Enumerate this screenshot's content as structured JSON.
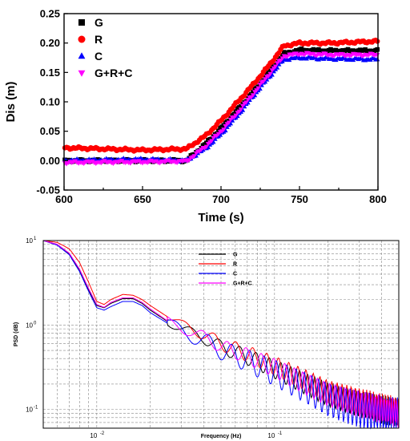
{
  "chart_data": [
    {
      "type": "scatter",
      "xlabel": "Time (s)",
      "ylabel": "Dis (m)",
      "xlim": [
        600,
        800
      ],
      "ylim": [
        -0.05,
        0.25
      ],
      "x_ticks": [
        "600",
        "650",
        "700",
        "750",
        "800"
      ],
      "y_ticks": [
        "-0.05",
        "0.00",
        "0.05",
        "0.10",
        "0.15",
        "0.20",
        "0.25"
      ],
      "legend_position": "top-left",
      "series": [
        {
          "name": "G",
          "color": "#000000",
          "marker": "square",
          "x": [
            600,
            650,
            678,
            690,
            700,
            710,
            720,
            730,
            740,
            750,
            770,
            800
          ],
          "y": [
            0.0,
            0.0,
            0.0,
            0.028,
            0.055,
            0.085,
            0.115,
            0.148,
            0.182,
            0.188,
            0.187,
            0.187
          ]
        },
        {
          "name": "R",
          "color": "#ff0000",
          "marker": "circle",
          "x": [
            600,
            650,
            678,
            690,
            700,
            710,
            720,
            730,
            740,
            750,
            770,
            800
          ],
          "y": [
            0.022,
            0.018,
            0.02,
            0.042,
            0.068,
            0.098,
            0.128,
            0.16,
            0.195,
            0.2,
            0.2,
            0.203
          ]
        },
        {
          "name": "C",
          "color": "#0000ff",
          "marker": "triangle-up",
          "x": [
            600,
            650,
            678,
            690,
            700,
            710,
            720,
            730,
            740,
            750,
            770,
            800
          ],
          "y": [
            0.0,
            0.002,
            0.0,
            0.02,
            0.045,
            0.075,
            0.108,
            0.14,
            0.172,
            0.175,
            0.173,
            0.172
          ]
        },
        {
          "name": "G+R+C",
          "color": "#ff00ff",
          "marker": "triangle-down",
          "x": [
            600,
            650,
            678,
            690,
            700,
            710,
            720,
            730,
            740,
            750,
            770,
            800
          ],
          "y": [
            -0.003,
            -0.002,
            -0.001,
            0.024,
            0.05,
            0.08,
            0.112,
            0.145,
            0.178,
            0.182,
            0.18,
            0.18
          ]
        }
      ]
    },
    {
      "type": "line",
      "xscale": "log",
      "yscale": "log",
      "xlabel": "Frequency (Hz)",
      "ylabel": "PSD (dB)",
      "xlim": [
        0.005,
        0.5
      ],
      "ylim": [
        0.06,
        10
      ],
      "x_ticks": [
        "10-2",
        "10-1"
      ],
      "y_ticks": [
        "10-1",
        "100",
        "101"
      ],
      "grid": true,
      "legend_position": "top-right",
      "series": [
        {
          "name": "G",
          "color": "#000000",
          "x": [
            0.005,
            0.006,
            0.007,
            0.008,
            0.009,
            0.01,
            0.011,
            0.012,
            0.014,
            0.016,
            0.018,
            0.02,
            0.025,
            0.03,
            0.04,
            0.05,
            0.07,
            0.1,
            0.15,
            0.2,
            0.3,
            0.4,
            0.5
          ],
          "y": [
            10,
            9.0,
            7.0,
            4.5,
            2.6,
            1.7,
            1.6,
            1.8,
            2.05,
            2.05,
            1.8,
            1.5,
            1.1,
            0.9,
            0.7,
            0.55,
            0.42,
            0.3,
            0.2,
            0.15,
            0.115,
            0.1,
            0.09
          ]
        },
        {
          "name": "R",
          "color": "#ff0000",
          "x": [
            0.005,
            0.006,
            0.007,
            0.008,
            0.009,
            0.01,
            0.011,
            0.012,
            0.014,
            0.016,
            0.018,
            0.02,
            0.025,
            0.03,
            0.04,
            0.05,
            0.07,
            0.1,
            0.15,
            0.2,
            0.3,
            0.4,
            0.5
          ],
          "y": [
            10,
            9.5,
            8.0,
            5.5,
            3.2,
            1.9,
            1.75,
            2.0,
            2.3,
            2.25,
            2.0,
            1.7,
            1.25,
            1.0,
            0.78,
            0.6,
            0.46,
            0.33,
            0.22,
            0.16,
            0.125,
            0.105,
            0.095
          ]
        },
        {
          "name": "C",
          "color": "#0000ff",
          "x": [
            0.005,
            0.006,
            0.007,
            0.008,
            0.009,
            0.01,
            0.011,
            0.012,
            0.014,
            0.016,
            0.018,
            0.02,
            0.025,
            0.03,
            0.04,
            0.05,
            0.07,
            0.1,
            0.15,
            0.2,
            0.3,
            0.4,
            0.5
          ],
          "y": [
            10,
            8.8,
            6.8,
            4.3,
            2.5,
            1.6,
            1.5,
            1.65,
            1.9,
            1.9,
            1.7,
            1.4,
            1.05,
            0.85,
            0.65,
            0.5,
            0.38,
            0.27,
            0.18,
            0.13,
            0.1,
            0.085,
            0.08
          ]
        },
        {
          "name": "G+R+C",
          "color": "#ff00ff",
          "x": [
            0.005,
            0.006,
            0.007,
            0.008,
            0.009,
            0.01,
            0.011,
            0.012,
            0.014,
            0.016,
            0.018,
            0.02,
            0.025,
            0.03,
            0.04,
            0.05,
            0.07,
            0.1,
            0.15,
            0.2,
            0.3,
            0.4,
            0.5
          ],
          "y": [
            10,
            9.0,
            7.1,
            4.6,
            2.7,
            1.75,
            1.62,
            1.85,
            2.1,
            2.1,
            1.85,
            1.55,
            1.12,
            0.92,
            0.72,
            0.56,
            0.43,
            0.31,
            0.2,
            0.15,
            0.115,
            0.1,
            0.09
          ]
        }
      ]
    }
  ]
}
